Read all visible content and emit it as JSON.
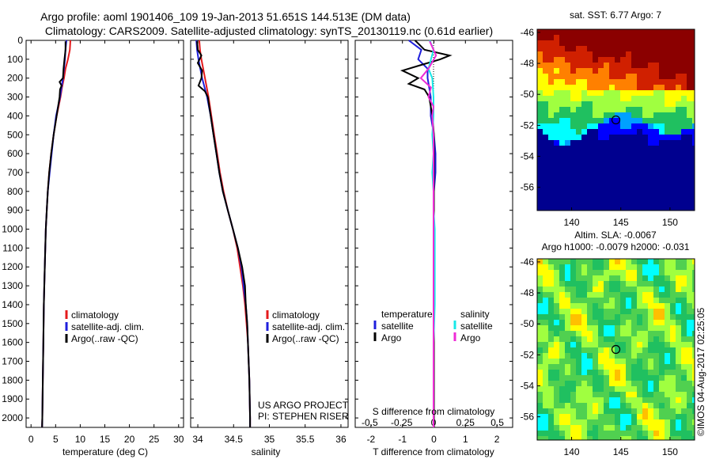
{
  "header": {
    "title_line1": "Argo profile: aoml 1901406_109 19-Jan-2013 51.651S 144.513E (DM data)",
    "title_line2": "Climatology: CARS2009. Satellite-adjusted climatology: synTS_20130119.nc (0.61d earlier)"
  },
  "colors": {
    "climatology": "#e41a1c",
    "satellite": "#1f1fdc",
    "argo": "#000000",
    "salinity_satellite": "#18e8e8",
    "salinity_argo": "#ee2bd6"
  },
  "depth_axis": {
    "ylim": [
      0,
      2050
    ],
    "ticks": [
      0,
      100,
      200,
      300,
      400,
      500,
      600,
      700,
      800,
      900,
      1000,
      1100,
      1200,
      1300,
      1400,
      1500,
      1600,
      1700,
      1800,
      1900,
      2000
    ]
  },
  "legend": {
    "climatology": "climatology",
    "satellite_clim": "satellite-adj. clim.",
    "argo_raw": "Argo(..raw -QC)",
    "temperature_header": "temperature",
    "salinity_header": "salinity",
    "satellite": "satellite",
    "argo": "Argo"
  },
  "credits": {
    "project": "US ARGO PROJECT",
    "pi": "PI: STEPHEN RISER",
    "watermark": "©IMOS 04-Aug-2017 02:25:05"
  },
  "chart_data": [
    {
      "type": "line",
      "name": "temperature profile",
      "xlabel": "temperature (deg C)",
      "xlim": [
        -1,
        31
      ],
      "xticks": [
        0,
        5,
        10,
        15,
        20,
        25,
        30
      ],
      "ylim": [
        0,
        2050
      ],
      "series": [
        {
          "name": "climatology",
          "depth": [
            0,
            50,
            100,
            150,
            200,
            250,
            300,
            400,
            500,
            600,
            700,
            800,
            900,
            1000,
            1200,
            1400,
            1600,
            1800,
            2000,
            2050
          ],
          "values": [
            8.0,
            7.9,
            7.5,
            7.0,
            6.7,
            6.3,
            6.0,
            5.2,
            4.6,
            4.1,
            3.7,
            3.4,
            3.2,
            3.0,
            2.8,
            2.6,
            2.5,
            2.4,
            2.3,
            2.25
          ]
        },
        {
          "name": "satellite-adj. clim.",
          "depth": [
            0,
            50,
            100,
            150,
            200,
            250,
            300,
            400,
            500,
            600,
            700,
            800,
            900,
            1000,
            1200,
            1400,
            1600,
            1800,
            2000,
            2050
          ],
          "values": [
            7.2,
            7.0,
            6.9,
            6.7,
            6.5,
            6.2,
            5.9,
            5.1,
            4.6,
            4.2,
            3.8,
            3.4,
            3.2,
            3.0,
            2.8,
            2.6,
            2.5,
            2.4,
            2.3,
            2.25
          ]
        },
        {
          "name": "Argo(..raw -QC)",
          "depth": [
            5,
            50,
            100,
            150,
            200,
            220,
            240,
            260,
            300,
            400,
            500,
            600,
            700,
            800,
            900,
            1000,
            1200,
            1400,
            1600,
            1800,
            2000,
            2050
          ],
          "values": [
            7.0,
            7.0,
            6.8,
            6.6,
            6.5,
            5.8,
            6.2,
            5.9,
            5.8,
            5.2,
            4.6,
            4.1,
            3.7,
            3.4,
            3.2,
            3.0,
            2.8,
            2.6,
            2.5,
            2.4,
            2.3,
            2.25
          ]
        }
      ]
    },
    {
      "type": "line",
      "name": "salinity profile",
      "xlabel": "salinity",
      "xlim": [
        33.9,
        36.1
      ],
      "xticks": [
        34,
        34.5,
        35,
        35.5,
        36
      ],
      "ylim": [
        0,
        2050
      ],
      "series": [
        {
          "name": "climatology",
          "depth": [
            0,
            50,
            100,
            200,
            300,
            400,
            500,
            600,
            700,
            800,
            900,
            1000,
            1100,
            1200,
            1300,
            1400,
            1500,
            1600,
            1800,
            2000,
            2050
          ],
          "values": [
            34.02,
            34.03,
            34.05,
            34.1,
            34.15,
            34.19,
            34.23,
            34.27,
            34.31,
            34.36,
            34.42,
            34.49,
            34.55,
            34.59,
            34.63,
            34.66,
            34.68,
            34.7,
            34.72,
            34.73,
            34.73
          ]
        },
        {
          "name": "satellite-adj. clim.",
          "depth": [
            0,
            50,
            100,
            200,
            300,
            400,
            500,
            600,
            700,
            800,
            900,
            1000,
            1100,
            1200,
            1300,
            1400,
            1500,
            1600,
            1800,
            2000,
            2050
          ],
          "values": [
            33.98,
            33.99,
            34.01,
            34.06,
            34.13,
            34.18,
            34.22,
            34.26,
            34.3,
            34.35,
            34.42,
            34.49,
            34.56,
            34.61,
            34.64,
            34.67,
            34.69,
            34.7,
            34.72,
            34.73,
            34.73
          ]
        },
        {
          "name": "Argo(..raw -QC)",
          "depth": [
            5,
            50,
            80,
            120,
            160,
            200,
            240,
            270,
            300,
            400,
            500,
            600,
            700,
            800,
            900,
            1000,
            1100,
            1200,
            1300,
            1400,
            1500,
            1600,
            1800,
            2000,
            2050
          ],
          "values": [
            33.99,
            34.0,
            34.05,
            34.0,
            34.06,
            34.05,
            34.01,
            34.1,
            34.14,
            34.18,
            34.22,
            34.26,
            34.3,
            34.35,
            34.42,
            34.49,
            34.56,
            34.62,
            34.66,
            34.67,
            34.69,
            34.7,
            34.72,
            34.73,
            34.73
          ]
        }
      ]
    },
    {
      "type": "line",
      "name": "difference from climatology",
      "xlabel": "T difference from climatology",
      "xlabel_top": "S difference from climatology",
      "xlim": [
        -2.5,
        2.5
      ],
      "xticks": [
        -2,
        -1,
        0,
        1,
        2
      ],
      "xticks_top": [
        -0.5,
        -0.25,
        0,
        0.25,
        0.5
      ],
      "ylim": [
        0,
        2050
      ],
      "series": [
        {
          "name": "temperature satellite",
          "depth": [
            0,
            50,
            100,
            150,
            200,
            300,
            400,
            500,
            600,
            700,
            800,
            900,
            1000,
            1200,
            1400,
            1600,
            1800,
            2000,
            2050
          ],
          "values": [
            -0.8,
            -0.4,
            -0.5,
            -0.2,
            -0.2,
            -0.1,
            -0.1,
            0.0,
            0.05,
            0.05,
            0.0,
            0.0,
            0.0,
            0.0,
            0.0,
            0.0,
            0.0,
            0.0,
            0.0
          ]
        },
        {
          "name": "temperature Argo",
          "depth": [
            0,
            50,
            80,
            100,
            130,
            160,
            200,
            230,
            260,
            300,
            400,
            500,
            600,
            700,
            800,
            1000,
            1200,
            1400,
            1600,
            1800,
            2000,
            2050
          ],
          "values": [
            -0.6,
            -0.3,
            0.5,
            0.2,
            -0.4,
            -1.0,
            -0.5,
            -0.8,
            -0.3,
            -0.15,
            -0.05,
            0.0,
            0.0,
            0.0,
            0.0,
            0.0,
            0.0,
            0.0,
            0.0,
            0.0,
            0.0,
            0.0
          ]
        },
        {
          "name": "salinity satellite",
          "depth": [
            0,
            50,
            100,
            150,
            200,
            300,
            400,
            500,
            600,
            700,
            800,
            900,
            1000,
            1200,
            1400,
            1600,
            1800,
            2000,
            2050
          ],
          "values": [
            -0.03,
            0.0,
            -0.02,
            -0.04,
            -0.01,
            0.0,
            0.0,
            -0.01,
            0.0,
            -0.01,
            0.0,
            0.0,
            0.01,
            0.01,
            0.01,
            0.0,
            0.0,
            0.0,
            0.0
          ]
        },
        {
          "name": "salinity Argo",
          "depth": [
            5,
            80,
            150,
            200,
            250,
            300,
            350,
            400,
            500,
            600,
            700,
            800,
            1000,
            1200,
            1400,
            1600,
            1800,
            2000,
            2050
          ],
          "values": [
            -0.03,
            0.02,
            -0.04,
            -0.1,
            -0.02,
            -0.04,
            0.0,
            -0.01,
            0.0,
            0.0,
            0.0,
            0.0,
            0.0,
            0.0,
            0.0,
            0.0,
            0.0,
            0.0,
            0.0
          ]
        }
      ]
    },
    {
      "type": "heatmap",
      "name": "satellite SST map",
      "title": "sat. SST: 6.77 Argo: 7",
      "xlim": [
        136.5,
        152.5
      ],
      "ylim": [
        -57.5,
        -45.8
      ],
      "xticks": [
        140,
        145,
        150
      ],
      "yticks": [
        -46,
        -48,
        -50,
        -52,
        -54,
        -56
      ],
      "marker": {
        "lon": 144.5,
        "lat": -51.65
      },
      "colors": [
        "#00008f",
        "#0000ff",
        "#00a0ff",
        "#00ffff",
        "#20c060",
        "#a0ff40",
        "#ffff00",
        "#ff8000",
        "#d02000",
        "#8b0000"
      ]
    },
    {
      "type": "heatmap",
      "name": "sea level anomaly map",
      "title_line1": "Altim. SLA: -0.0067",
      "title_line2": "Argo h1000: -0.0079 h2000: -0.031",
      "xlim": [
        136.5,
        152.5
      ],
      "ylim": [
        -57.5,
        -45.8
      ],
      "xticks": [
        140,
        145,
        150
      ],
      "yticks": [
        -46,
        -48,
        -50,
        -52,
        -54,
        -56
      ],
      "marker": {
        "lon": 144.5,
        "lat": -51.65
      },
      "colors": [
        "#00ffff",
        "#20c060",
        "#50d050",
        "#a0ff40",
        "#ffff00",
        "#ffc000"
      ]
    }
  ]
}
